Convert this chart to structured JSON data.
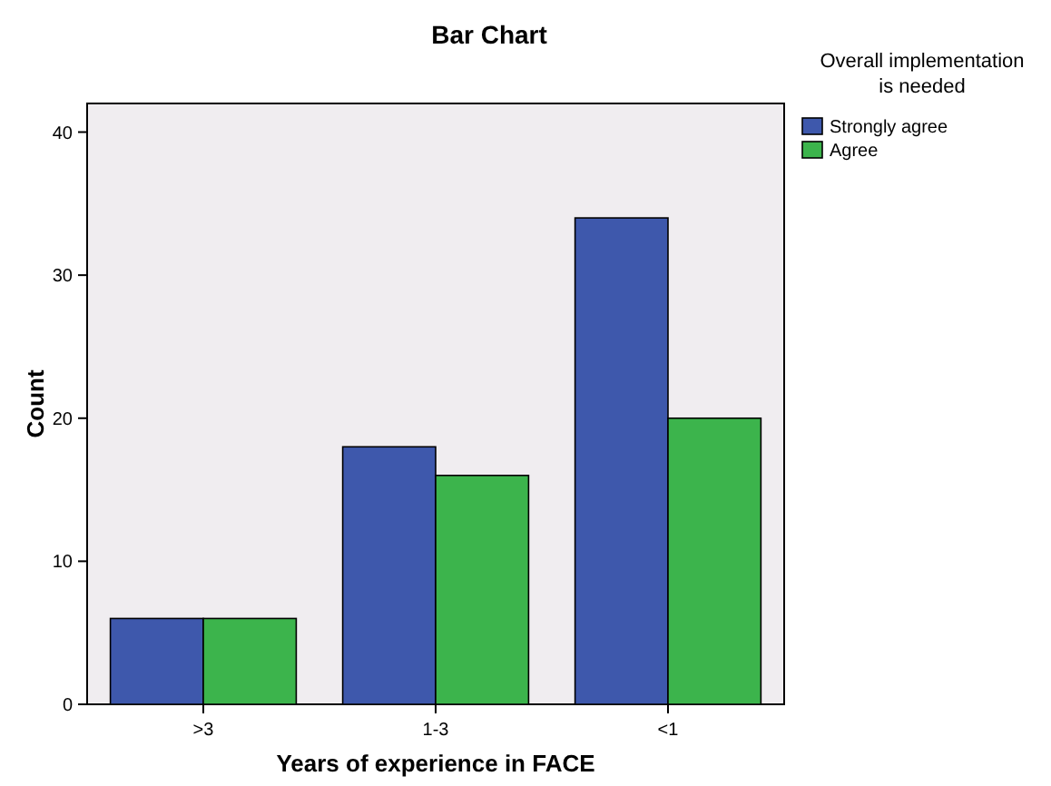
{
  "chart_data": {
    "type": "bar",
    "title": "Bar Chart",
    "xlabel": "Years of experience in FACE",
    "ylabel": "Count",
    "legend_title": "Overall implementation\nis needed",
    "categories": [
      ">3",
      "1-3",
      "<1"
    ],
    "series": [
      {
        "name": "Strongly agree",
        "color": "#3e58ac",
        "values": [
          6,
          18,
          34
        ]
      },
      {
        "name": "Agree",
        "color": "#3cb44c",
        "values": [
          6,
          16,
          20
        ]
      }
    ],
    "ylim": [
      0,
      42
    ],
    "yticks": [
      0,
      10,
      20,
      30,
      40
    ],
    "grid": false,
    "legend": "top right"
  }
}
